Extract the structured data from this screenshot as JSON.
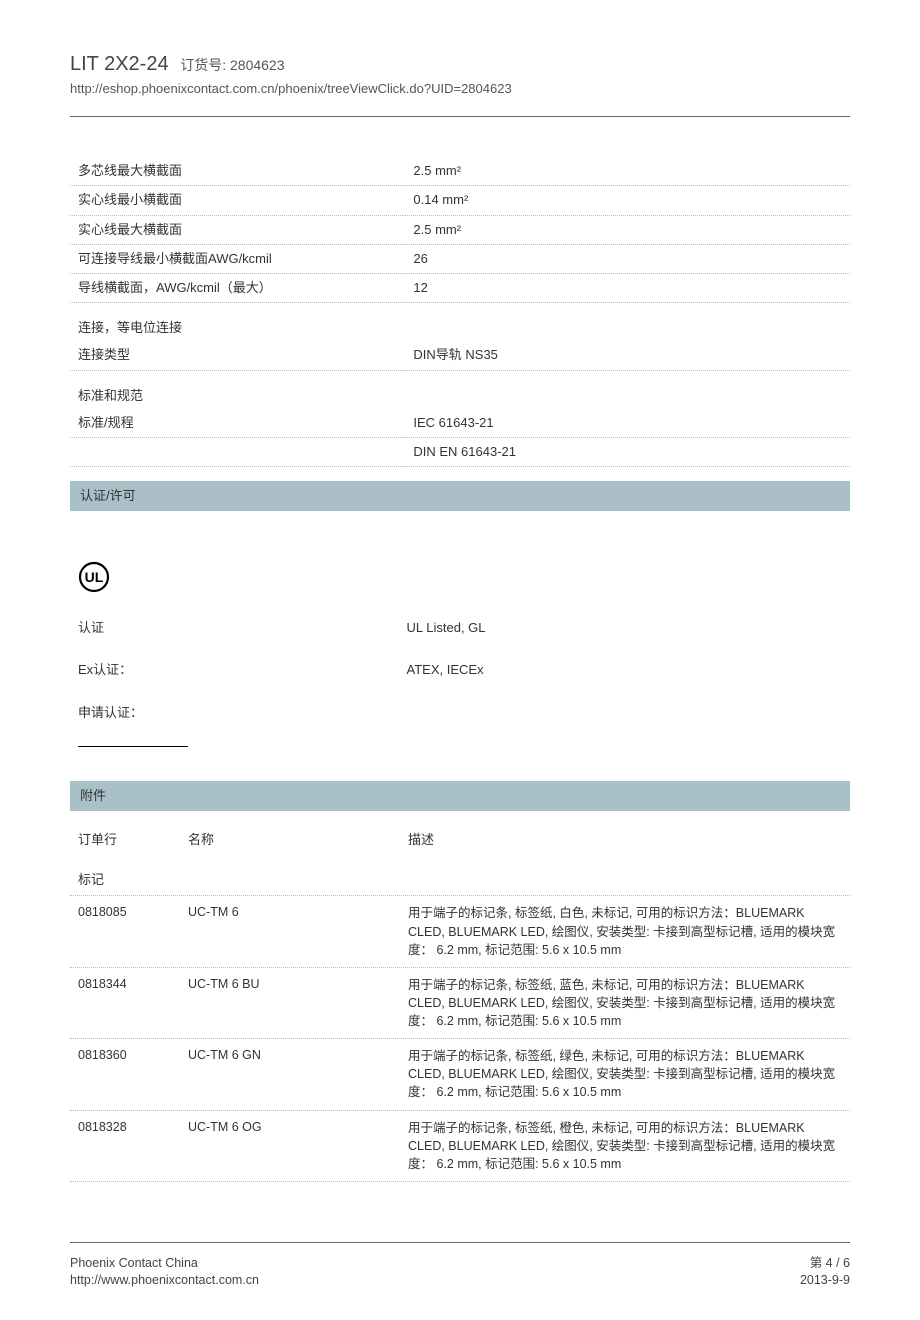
{
  "header": {
    "product_name": "LIT 2X2-24",
    "order_label": "订货号: 2804623",
    "url": "http://eshop.phoenixcontact.com.cn/phoenix/treeViewClick.do?UID=2804623"
  },
  "specs": [
    {
      "label": "多芯线最大横截面",
      "value": "2.5 mm²"
    },
    {
      "label": "实心线最小横截面",
      "value": "0.14 mm²"
    },
    {
      "label": "实心线最大横截面",
      "value": "2.5 mm²"
    },
    {
      "label": "可连接导线最小横截面AWG/kcmil",
      "value": "26"
    },
    {
      "label": "导线横截面，AWG/kcmil（最大）",
      "value": "12"
    }
  ],
  "connection_section": {
    "title": "连接，等电位连接",
    "rows": [
      {
        "label": "连接类型",
        "value": "DIN导轨 NS35"
      }
    ]
  },
  "standards_section": {
    "title": "标准和规范",
    "rows": [
      {
        "label": "标准/规程",
        "value": "IEC 61643-21"
      },
      {
        "label": "",
        "value": "DIN EN 61643-21"
      }
    ]
  },
  "approvals": {
    "band_title": "认证/许可",
    "rows": [
      {
        "label": "认证",
        "value": "UL Listed, GL"
      },
      {
        "label": "Ex认证：",
        "value": "ATEX, IECEx"
      },
      {
        "label": "申请认证：",
        "value": ""
      }
    ]
  },
  "accessories": {
    "band_title": "附件",
    "header": {
      "order": "订单行",
      "name": "名称",
      "desc": "描述"
    },
    "category": "标记",
    "rows": [
      {
        "order": "0818085",
        "name": "UC-TM 6",
        "desc": "用于端子的标记条, 标签纸, 白色, 未标记, 可用的标识方法：BLUEMARK CLED, BLUEMARK LED, 绘图仪, 安装类型: 卡接到高型标记槽, 适用的模块宽度： 6.2 mm, 标记范围: 5.6 x 10.5 mm"
      },
      {
        "order": "0818344",
        "name": "UC-TM 6 BU",
        "desc": "用于端子的标记条, 标签纸, 蓝色, 未标记, 可用的标识方法：BLUEMARK CLED, BLUEMARK LED, 绘图仪, 安装类型: 卡接到高型标记槽, 适用的模块宽度： 6.2 mm, 标记范围: 5.6 x 10.5 mm"
      },
      {
        "order": "0818360",
        "name": "UC-TM 6 GN",
        "desc": "用于端子的标记条, 标签纸, 绿色, 未标记, 可用的标识方法：BLUEMARK CLED, BLUEMARK LED, 绘图仪, 安装类型: 卡接到高型标记槽, 适用的模块宽度： 6.2 mm, 标记范围: 5.6 x 10.5 mm"
      },
      {
        "order": "0818328",
        "name": "UC-TM 6 OG",
        "desc": "用于端子的标记条, 标签纸, 橙色, 未标记, 可用的标识方法：BLUEMARK CLED, BLUEMARK LED, 绘图仪, 安装类型: 卡接到高型标记槽, 适用的模块宽度： 6.2 mm, 标记范围: 5.6 x 10.5 mm"
      }
    ]
  },
  "footer": {
    "company": "Phoenix Contact China",
    "site": "http://www.phoenixcontact.com.cn",
    "page": "第 4 / 6",
    "date": "2013-9-9"
  }
}
